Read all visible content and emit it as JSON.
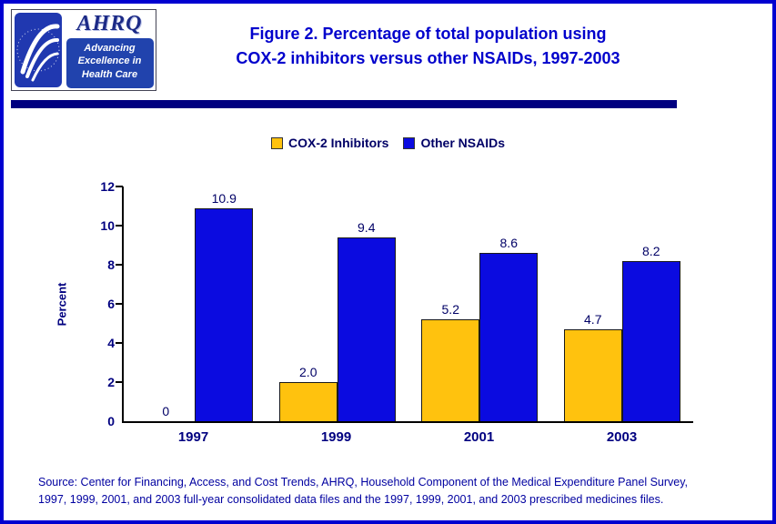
{
  "page": {
    "colors": {
      "page_border": "#0000d0",
      "title_text": "#0000cc",
      "navy_accent": "#000080",
      "source_text": "#0000a0"
    }
  },
  "header": {
    "logo": {
      "acronym": "AHRQ",
      "tagline": "Advancing Excellence in Health Care"
    },
    "title_line1": "Figure 2. Percentage of total population using",
    "title_line2": "COX-2 inhibitors versus other NSAIDs, 1997-2003"
  },
  "chart_data": {
    "type": "bar",
    "title": "Figure 2. Percentage of total population using COX-2 inhibitors versus other NSAIDs, 1997-2003",
    "categories": [
      "1997",
      "1999",
      "2001",
      "2003"
    ],
    "series": [
      {
        "name": "COX-2 Inhibitors",
        "color": "#ffc20e",
        "values": [
          0,
          2.0,
          5.2,
          4.7
        ],
        "value_labels": [
          "0",
          "2.0",
          "5.2",
          "4.7"
        ]
      },
      {
        "name": "Other NSAIDs",
        "color": "#0b0be0",
        "values": [
          10.9,
          9.4,
          8.6,
          8.2
        ],
        "value_labels": [
          "10.9",
          "9.4",
          "8.6",
          "8.2"
        ]
      }
    ],
    "xlabel": "",
    "ylabel": "Percent",
    "ylim": [
      0,
      12
    ],
    "yticks": [
      0,
      2,
      4,
      6,
      8,
      10,
      12
    ],
    "grid": false,
    "legend_position": "top"
  },
  "footer": {
    "source_line1": "Source: Center for Financing, Access, and Cost Trends, AHRQ, Household Component of the Medical Expenditure Panel Survey,",
    "source_line2": "1997, 1999, 2001, and 2003 full-year consolidated data files and the 1997, 1999, 2001, and 2003 prescribed medicines files."
  }
}
